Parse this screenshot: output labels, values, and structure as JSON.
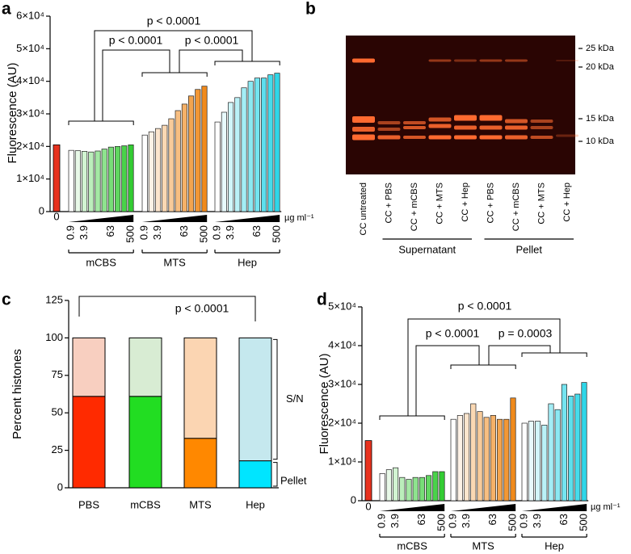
{
  "chart_data": [
    {
      "type": "grouped_bar",
      "label": "a",
      "y_label": "Fluorescence (AU)",
      "ylim": [
        0,
        60000
      ],
      "yticks": [
        0,
        {
          "value": 10000,
          "label": "1×10⁴"
        },
        {
          "value": 20000,
          "label": "2×10⁴"
        },
        {
          "value": 30000,
          "label": "3×10⁴"
        },
        {
          "value": 40000,
          "label": "4×10⁴"
        },
        {
          "value": 50000,
          "label": "5×10⁴"
        },
        {
          "value": 60000,
          "label": "6×10⁴"
        }
      ],
      "control": {
        "category": "0",
        "value": 20500,
        "color": "#e8321e"
      },
      "categories": [
        "0.9",
        null,
        "3.9",
        null,
        null,
        null,
        "63",
        null,
        null,
        "500"
      ],
      "unit": "µg ml⁻¹",
      "series": [
        {
          "name": "mCBS",
          "color": "#33cc33",
          "values": [
            18800,
            18700,
            18500,
            18300,
            18600,
            19200,
            19800,
            20000,
            20200,
            20500
          ]
        },
        {
          "name": "MTS",
          "color": "#f08a1c",
          "values": [
            23500,
            24500,
            25500,
            26500,
            28500,
            31000,
            33000,
            35500,
            37500,
            38500
          ]
        },
        {
          "name": "Hep",
          "color": "#2fd6e8",
          "values": [
            27500,
            30500,
            33500,
            35000,
            38000,
            40000,
            41000,
            41000,
            42000,
            42500
          ]
        }
      ],
      "annotations": [
        "p < 0.0001",
        "p < 0.0001",
        "p < 0.0001"
      ]
    },
    {
      "type": "stacked_bar",
      "label": "c",
      "y_label": "Percent histones",
      "ylim": [
        0,
        125
      ],
      "yticks": [
        0,
        25,
        50,
        75,
        100,
        125
      ],
      "categories": [
        "PBS",
        "mCBS",
        "MTS",
        "Hep"
      ],
      "series": [
        {
          "name": "Pellet",
          "colors": [
            "#ff2a00",
            "#22dd22",
            "#ff8800",
            "#00e5ff"
          ],
          "values": [
            61,
            61,
            33,
            18
          ]
        },
        {
          "name": "S/N",
          "colors": [
            "#f8cfc0",
            "#d8ecd3",
            "#fbd5b2",
            "#c5e8ee"
          ],
          "values": [
            39,
            39,
            67,
            82
          ]
        }
      ],
      "annotations": [
        "p < 0.0001"
      ]
    },
    {
      "type": "grouped_bar",
      "label": "d",
      "y_label": "Fluorescence (AU)",
      "ylim": [
        0,
        50000
      ],
      "yticks": [
        0,
        {
          "value": 10000,
          "label": "1×10⁴"
        },
        {
          "value": 20000,
          "label": "2×10⁴"
        },
        {
          "value": 30000,
          "label": "3×10⁴"
        },
        {
          "value": 40000,
          "label": "4×10⁴"
        },
        {
          "value": 50000,
          "label": "5×10⁴"
        }
      ],
      "control": {
        "category": "0",
        "value": 15500,
        "color": "#e8321e"
      },
      "categories": [
        "0.9",
        null,
        "3.9",
        null,
        null,
        null,
        "63",
        null,
        null,
        "500"
      ],
      "unit": "µg ml⁻¹",
      "series": [
        {
          "name": "mCBS",
          "color": "#33cc33",
          "values": [
            7000,
            8000,
            8500,
            6000,
            5500,
            6000,
            6000,
            6500,
            7500,
            7500
          ]
        },
        {
          "name": "MTS",
          "color": "#f08a1c",
          "values": [
            21000,
            22000,
            22500,
            25000,
            23000,
            21500,
            22000,
            21000,
            21000,
            26500
          ]
        },
        {
          "name": "Hep",
          "color": "#2fd6e8",
          "values": [
            20000,
            20500,
            20500,
            19500,
            25000,
            23500,
            30000,
            27000,
            27500,
            30500
          ]
        }
      ],
      "annotations": [
        "p < 0.0001",
        "p < 0.0001",
        "p = 0.0003"
      ]
    }
  ],
  "gel": {
    "label": "b",
    "lanes": [
      "CC untreated",
      "CC + PBS",
      "CC + mCBS",
      "CC + MTS",
      "CC + Hep",
      "CC + PBS",
      "CC + mCBS",
      "CC + MTS",
      "CC + Hep"
    ],
    "markers": [
      "25 kDa",
      "20 kDa",
      "15 kDa",
      "10 kDa"
    ],
    "groups": [
      "Supernatant",
      "Pellet"
    ]
  }
}
